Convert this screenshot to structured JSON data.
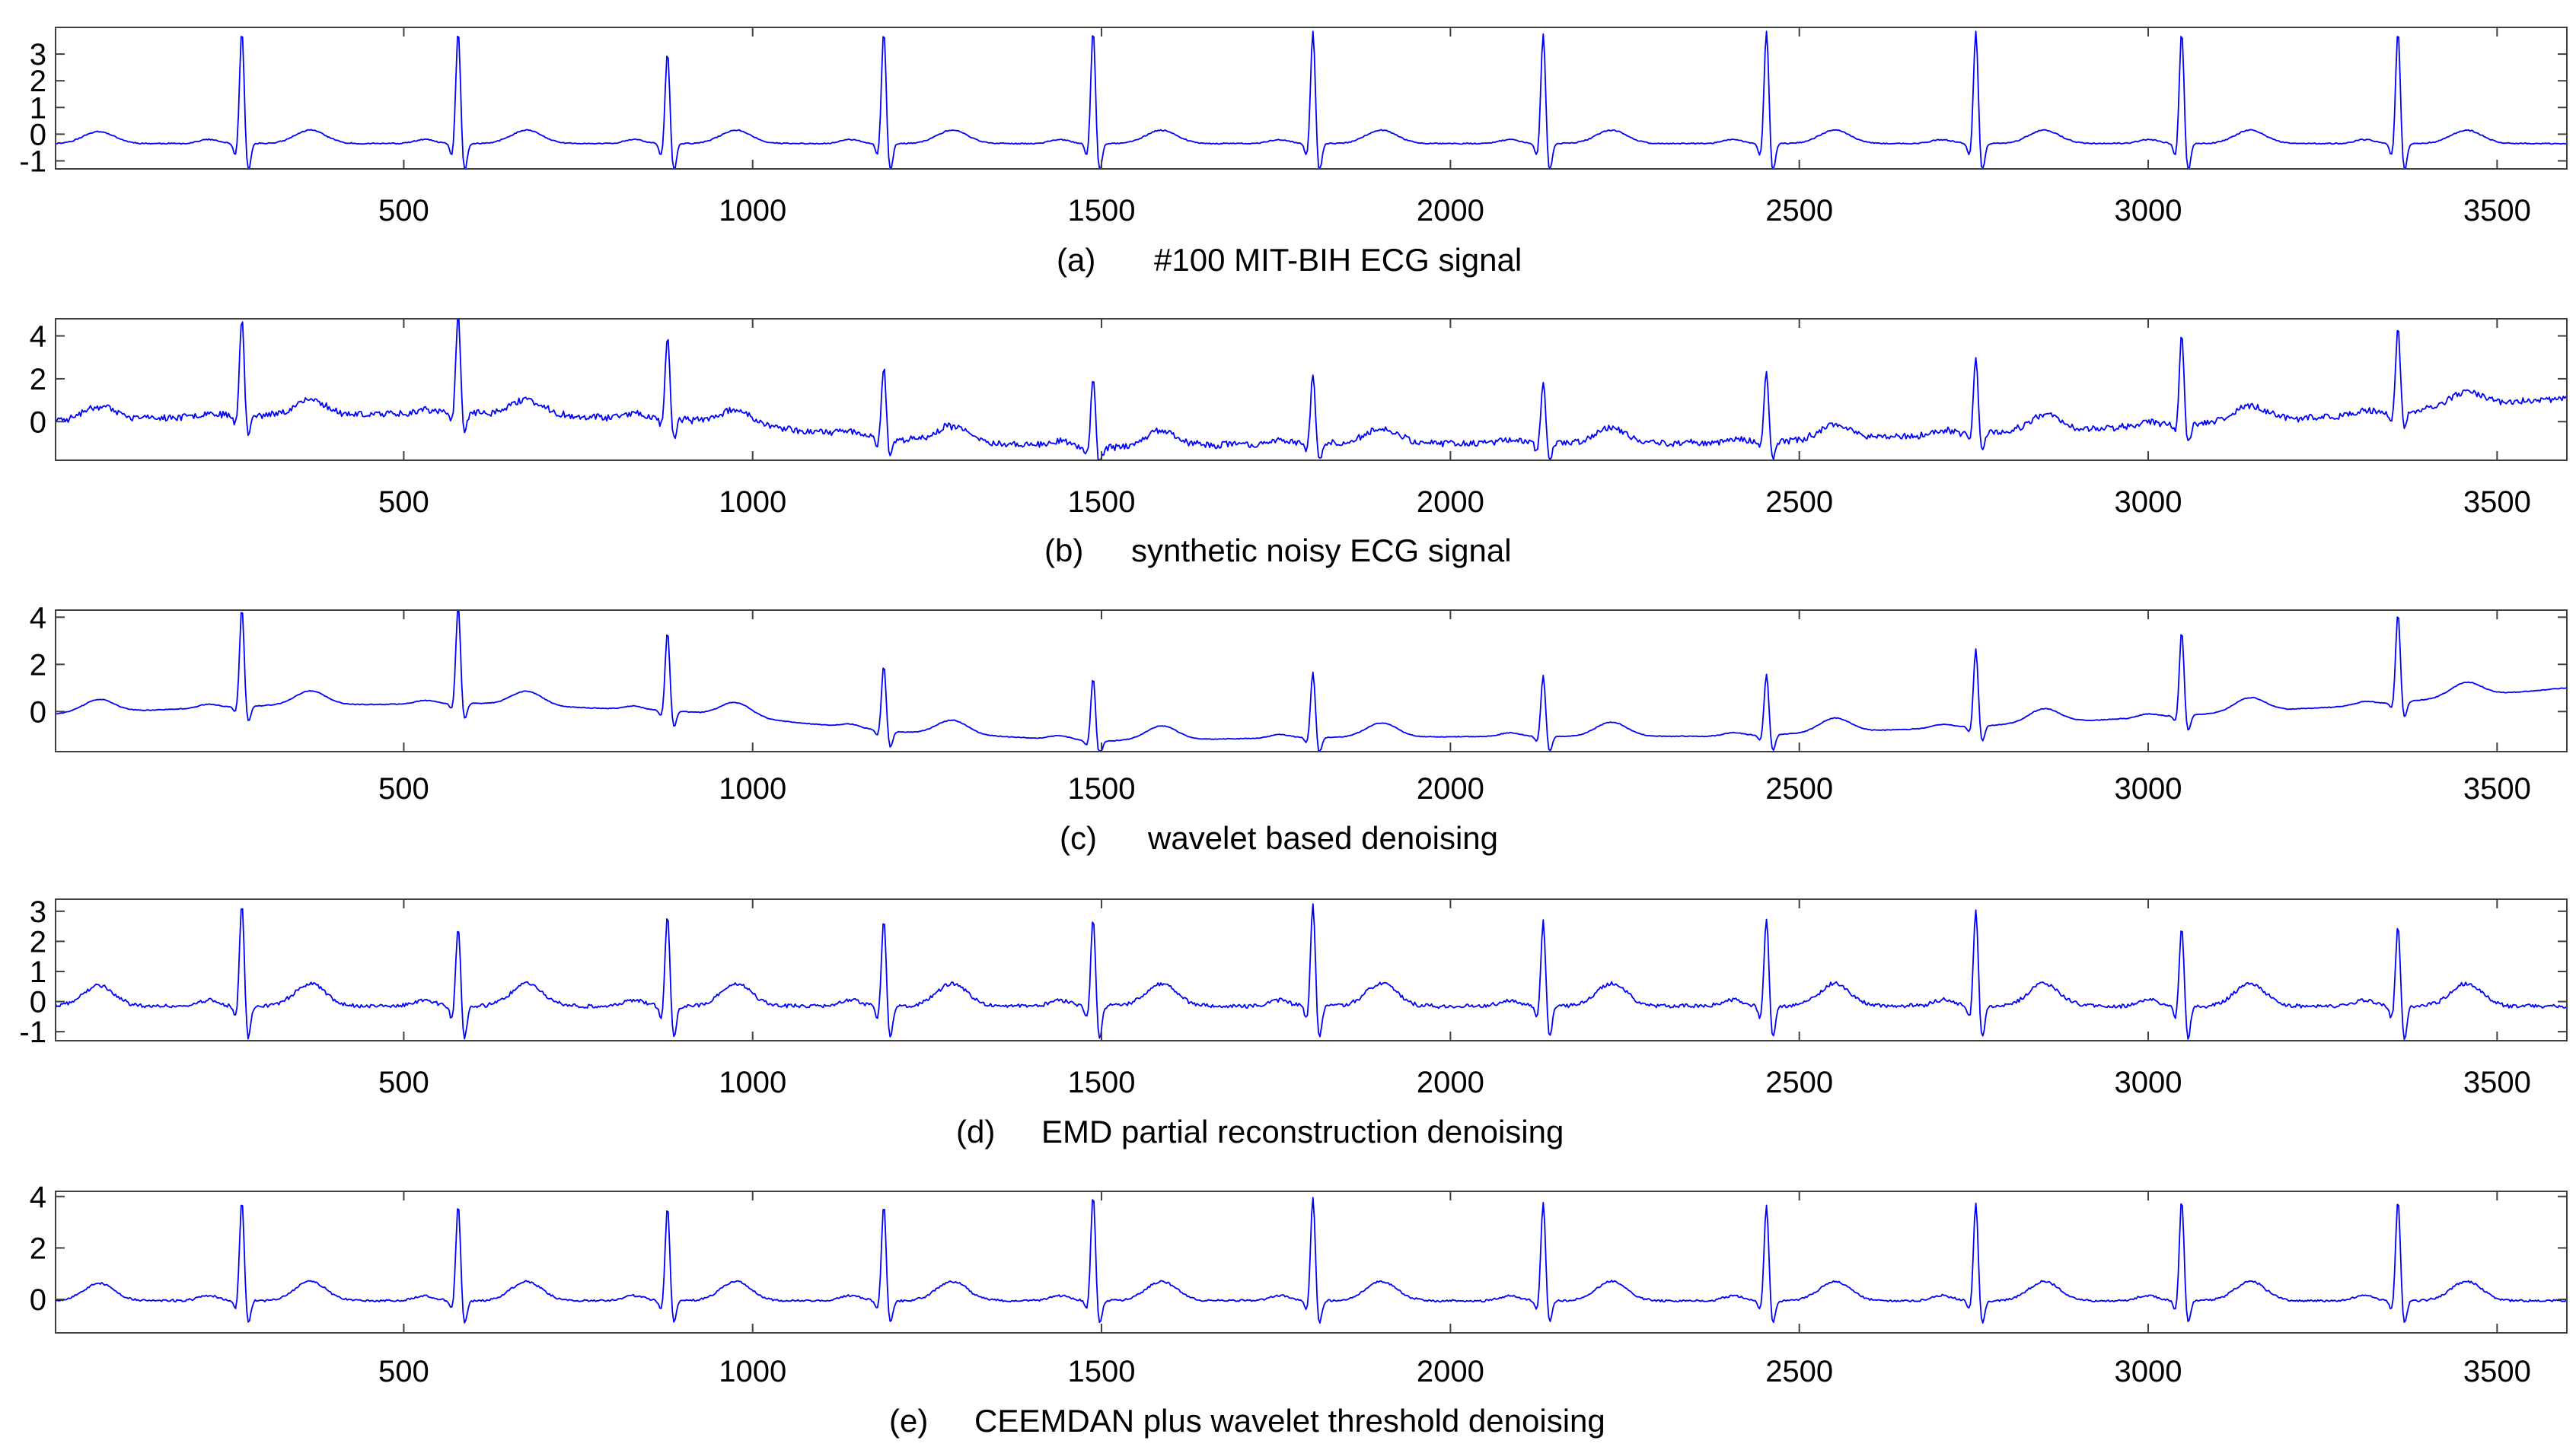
{
  "figure": {
    "line_color": "#0000ff",
    "axis_color": "#404040"
  },
  "chart_data": [
    {
      "type": "line",
      "panel": "a",
      "caption_letter": "(a)",
      "caption_text": "#100 MIT-BIH ECG signal",
      "xlim": [
        1,
        3600
      ],
      "ylim": [
        -1.3,
        4.0
      ],
      "xticks": [
        500,
        1000,
        1500,
        2000,
        2500,
        3000,
        3500
      ],
      "yticks": [
        -1,
        0,
        1,
        2,
        3
      ],
      "x_step": 2,
      "baseline": -0.35,
      "drift": [
        [
          0,
          0
        ],
        [
          3600,
          0
        ]
      ],
      "r_peaks": [
        [
          268,
          3.9
        ],
        [
          578,
          3.9
        ],
        [
          878,
          3.1
        ],
        [
          1188,
          3.9
        ],
        [
          1488,
          3.9
        ],
        [
          1803,
          3.9
        ],
        [
          2133,
          3.8
        ],
        [
          2453,
          3.9
        ],
        [
          2753,
          3.9
        ],
        [
          3048,
          3.9
        ],
        [
          3358,
          3.9
        ]
      ],
      "q_depth": -0.8,
      "s_depth": -1.1,
      "t_height": 0.5,
      "p_height": 0.15,
      "noise": 0.02,
      "seed": 11
    },
    {
      "type": "line",
      "panel": "b",
      "caption_letter": "(b)",
      "caption_text": "synthetic noisy ECG signal",
      "xlim": [
        1,
        3600
      ],
      "ylim": [
        -1.8,
        4.8
      ],
      "xticks": [
        500,
        1000,
        1500,
        2000,
        2500,
        3000,
        3500
      ],
      "yticks": [
        0,
        2,
        4
      ],
      "x_step": 2,
      "baseline": 0.0,
      "drift": [
        [
          0,
          0.05
        ],
        [
          300,
          0.3
        ],
        [
          600,
          0.4
        ],
        [
          900,
          0.1
        ],
        [
          1200,
          -0.8
        ],
        [
          1500,
          -1.2
        ],
        [
          1800,
          -1.0
        ],
        [
          2100,
          -1.0
        ],
        [
          2400,
          -1.0
        ],
        [
          2700,
          -0.6
        ],
        [
          3000,
          -0.2
        ],
        [
          3300,
          0.3
        ],
        [
          3600,
          1.1
        ]
      ],
      "r_peaks": [
        [
          268,
          4.6
        ],
        [
          578,
          4.6
        ],
        [
          878,
          3.9
        ],
        [
          1188,
          3.3
        ],
        [
          1488,
          3.2
        ],
        [
          1803,
          3.2
        ],
        [
          2133,
          3.0
        ],
        [
          2453,
          3.3
        ],
        [
          2753,
          3.6
        ],
        [
          3048,
          4.2
        ],
        [
          3358,
          4.0
        ]
      ],
      "q_depth": -0.6,
      "s_depth": -0.9,
      "t_height": 0.7,
      "p_height": 0.2,
      "noise": 0.14,
      "seed": 23
    },
    {
      "type": "line",
      "panel": "c",
      "caption_letter": "(c)",
      "caption_text": "wavelet based denoising",
      "xlim": [
        1,
        3600
      ],
      "ylim": [
        -1.7,
        4.3
      ],
      "xticks": [
        500,
        1000,
        1500,
        2000,
        2500,
        3000,
        3500
      ],
      "yticks": [
        0,
        2,
        4
      ],
      "x_step": 2,
      "baseline": 0.0,
      "drift": [
        [
          0,
          -0.1
        ],
        [
          300,
          0.25
        ],
        [
          600,
          0.35
        ],
        [
          900,
          0.0
        ],
        [
          1200,
          -0.85
        ],
        [
          1500,
          -1.25
        ],
        [
          1800,
          -1.1
        ],
        [
          2100,
          -1.05
        ],
        [
          2400,
          -1.05
        ],
        [
          2700,
          -0.7
        ],
        [
          3000,
          -0.25
        ],
        [
          3300,
          0.25
        ],
        [
          3600,
          1.0
        ]
      ],
      "r_peaks": [
        [
          268,
          4.2
        ],
        [
          578,
          4.2
        ],
        [
          878,
          3.4
        ],
        [
          1188,
          2.8
        ],
        [
          1488,
          2.7
        ],
        [
          1803,
          2.8
        ],
        [
          2133,
          2.6
        ],
        [
          2453,
          2.6
        ],
        [
          2753,
          3.3
        ],
        [
          3048,
          3.6
        ],
        [
          3358,
          3.8
        ]
      ],
      "q_depth": -0.4,
      "s_depth": -0.7,
      "t_height": 0.6,
      "p_height": 0.15,
      "noise": 0.015,
      "seed": 37
    },
    {
      "type": "line",
      "panel": "d",
      "caption_letter": "(d)",
      "caption_text": "EMD partial reconstruction denoising",
      "xlim": [
        1,
        3600
      ],
      "ylim": [
        -1.3,
        3.4
      ],
      "xticks": [
        500,
        1000,
        1500,
        2000,
        2500,
        3000,
        3500
      ],
      "yticks": [
        -1,
        0,
        1,
        2,
        3
      ],
      "x_step": 2,
      "baseline": -0.15,
      "drift": [
        [
          0,
          0
        ],
        [
          3600,
          0
        ]
      ],
      "r_peaks": [
        [
          268,
          3.3
        ],
        [
          578,
          2.5
        ],
        [
          878,
          2.9
        ],
        [
          1188,
          2.8
        ],
        [
          1488,
          2.8
        ],
        [
          1803,
          3.3
        ],
        [
          2133,
          2.7
        ],
        [
          2453,
          2.8
        ],
        [
          2753,
          3.1
        ],
        [
          3048,
          2.5
        ],
        [
          3358,
          2.6
        ]
      ],
      "q_depth": -0.7,
      "s_depth": -1.1,
      "t_height": 0.75,
      "p_height": 0.2,
      "noise": 0.06,
      "seed": 41
    },
    {
      "type": "line",
      "panel": "e",
      "caption_letter": "(e)",
      "caption_text": "CEEMDAN plus wavelet threshold denoising",
      "xlim": [
        1,
        3600
      ],
      "ylim": [
        -1.3,
        4.2
      ],
      "xticks": [
        500,
        1000,
        1500,
        2000,
        2500,
        3000,
        3500
      ],
      "yticks": [
        0,
        2,
        4
      ],
      "x_step": 2,
      "baseline": -0.05,
      "drift": [
        [
          0,
          0
        ],
        [
          3600,
          0
        ]
      ],
      "r_peaks": [
        [
          268,
          3.9
        ],
        [
          578,
          3.7
        ],
        [
          878,
          3.6
        ],
        [
          1188,
          3.7
        ],
        [
          1488,
          4.1
        ],
        [
          1803,
          4.0
        ],
        [
          2133,
          3.8
        ],
        [
          2453,
          3.7
        ],
        [
          2753,
          3.8
        ],
        [
          3048,
          3.9
        ],
        [
          3358,
          3.9
        ]
      ],
      "q_depth": -0.6,
      "s_depth": -0.9,
      "t_height": 0.75,
      "p_height": 0.2,
      "noise": 0.04,
      "seed": 53
    }
  ]
}
